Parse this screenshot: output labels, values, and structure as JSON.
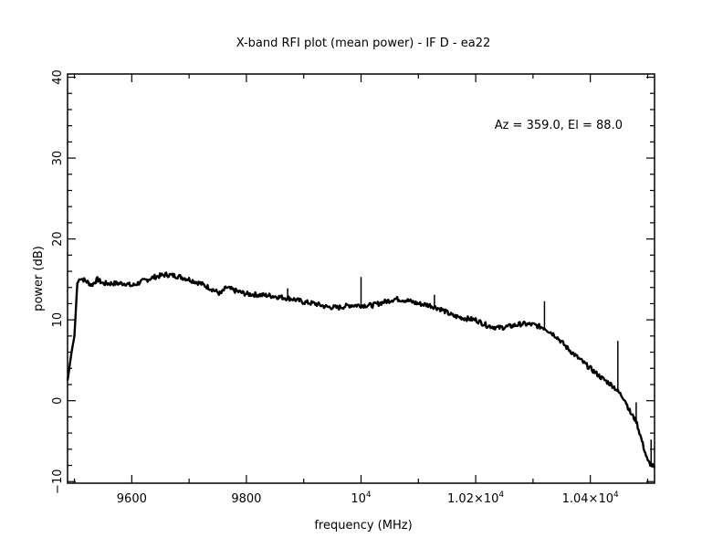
{
  "chart_data": {
    "type": "line",
    "title": "X-band RFI plot (mean power) - IF D - ea22",
    "annotation": "Az = 359.0, El = 88.0",
    "xlabel": "frequency (MHz)",
    "ylabel": "power (dB)",
    "xlim": [
      9488,
      10512
    ],
    "ylim": [
      -10.2,
      40.4
    ],
    "x_ticks": [
      {
        "value": 9600,
        "label": "9600"
      },
      {
        "value": 9800,
        "label": "9800"
      },
      {
        "value": 10000,
        "label": "10",
        "exp": "4"
      },
      {
        "value": 10200,
        "label": "1.02×10",
        "exp": "4"
      },
      {
        "value": 10400,
        "label": "1.04×10",
        "exp": "4"
      }
    ],
    "x_minor_step": 100,
    "y_ticks": [
      {
        "value": -10,
        "label": "−10"
      },
      {
        "value": 0,
        "label": "0"
      },
      {
        "value": 10,
        "label": "10"
      },
      {
        "value": 20,
        "label": "20"
      },
      {
        "value": 30,
        "label": "30"
      },
      {
        "value": 40,
        "label": "40"
      }
    ],
    "y_minor_step": 2,
    "grid": false,
    "series": [
      {
        "name": "mean power",
        "color": "#000000",
        "x": [
          9488,
          9495,
          9500,
          9505,
          9510,
          9520,
          9530,
          9540,
          9550,
          9570,
          9590,
          9600,
          9620,
          9640,
          9660,
          9680,
          9700,
          9720,
          9740,
          9755,
          9765,
          9780,
          9800,
          9820,
          9840,
          9860,
          9880,
          9900,
          9920,
          9940,
          9960,
          9980,
          10000,
          10020,
          10040,
          10060,
          10080,
          10100,
          10120,
          10140,
          10160,
          10180,
          10200,
          10220,
          10240,
          10260,
          10280,
          10300,
          10320,
          10340,
          10360,
          10380,
          10400,
          10420,
          10440,
          10460,
          10470,
          10480,
          10490,
          10500,
          10512
        ],
        "y": [
          2.5,
          6,
          8,
          14.5,
          15.2,
          14.8,
          14.3,
          15,
          14.5,
          14.5,
          14.5,
          14.2,
          14.8,
          15.3,
          15.6,
          15.4,
          15.0,
          14.5,
          13.8,
          13.2,
          14.0,
          13.6,
          13.2,
          13.1,
          13.0,
          12.8,
          12.6,
          12.2,
          12.0,
          11.6,
          11.5,
          11.8,
          11.8,
          11.8,
          12.2,
          12.6,
          12.4,
          12.0,
          11.8,
          11.3,
          10.5,
          10.2,
          10.0,
          9.3,
          9.0,
          9.2,
          9.5,
          9.4,
          9.0,
          8.0,
          6.5,
          5.2,
          4.0,
          2.8,
          1.8,
          0.2,
          -1.5,
          -2.5,
          -5,
          -7.5,
          -8.3
        ]
      }
    ],
    "spikes": [
      {
        "x": 9872,
        "y": 13.9
      },
      {
        "x": 10000,
        "y": 15.3
      },
      {
        "x": 10128,
        "y": 13.1
      },
      {
        "x": 10320,
        "y": 12.3
      },
      {
        "x": 10448,
        "y": 7.4
      },
      {
        "x": 10480,
        "y": -0.2
      },
      {
        "x": 10506,
        "y": -4.8
      }
    ]
  }
}
